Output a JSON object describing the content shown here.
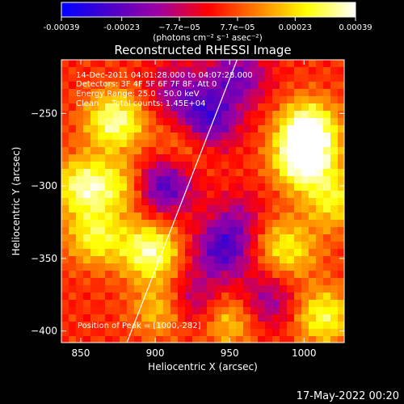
{
  "colorbar": {
    "tick_labels": [
      "-0.00039",
      "-0.00023",
      "−7.7e−05",
      "7.7e−05",
      "0.00023",
      "0.00039"
    ],
    "tick_values": [
      -0.00039,
      -0.00023,
      -7.7e-05,
      7.7e-05,
      0.00023,
      0.00039
    ],
    "range": [
      -0.00039,
      0.00039
    ],
    "unit_label": "(photons cm⁻² s⁻¹ asec⁻²)",
    "colors": [
      "#0000ff",
      "#4b00c8",
      "#a000a0",
      "#ff0000",
      "#ff8000",
      "#ffff00",
      "#ffffff"
    ]
  },
  "chart_data": {
    "type": "heatmap",
    "title": "Reconstructed RHESSI Image",
    "xlabel": "Heliocentric X (arcsec)",
    "ylabel": "Heliocentric Y (arcsec)",
    "xlim": [
      837,
      1027
    ],
    "ylim": [
      -408,
      -213
    ],
    "x_ticks": [
      850,
      900,
      950,
      1000
    ],
    "y_ticks": [
      -250,
      -300,
      -350,
      -400
    ],
    "annotations": [
      "14-Dec-2011 04:01:28.000 to 04:07:28.000",
      "Detectors: 3F 4F 5F 6F 7F 8F, Att 0",
      "Energy Range: 25.0 - 50.0 keV",
      "Clean     Total counts: 1.45E+04"
    ],
    "peak_label": "Position of Peak = [1000,-282]",
    "peak_position": [
      1000,
      -282
    ],
    "limb_line": [
      [
        881,
        -408
      ],
      [
        955,
        -213
      ]
    ],
    "hot_spots": [
      {
        "x": 1000,
        "y": -282,
        "level": 1.0
      },
      {
        "x": 1003,
        "y": -260,
        "level": 0.85
      },
      {
        "x": 873,
        "y": -255,
        "level": 0.8
      },
      {
        "x": 852,
        "y": -300,
        "level": 0.75
      },
      {
        "x": 897,
        "y": -345,
        "level": 0.8
      },
      {
        "x": 860,
        "y": -335,
        "level": 0.6
      },
      {
        "x": 905,
        "y": -385,
        "level": 0.5
      },
      {
        "x": 990,
        "y": -345,
        "level": 0.5
      },
      {
        "x": 1013,
        "y": -390,
        "level": 0.65
      },
      {
        "x": 950,
        "y": -392,
        "level": 0.5
      },
      {
        "x": 880,
        "y": -300,
        "level": 0.45
      },
      {
        "x": 920,
        "y": -270,
        "level": 0.35
      },
      {
        "x": 970,
        "y": -330,
        "level": 0.35
      },
      {
        "x": 1020,
        "y": -310,
        "level": 0.55
      }
    ],
    "cold_spots": [
      {
        "x": 905,
        "y": -300,
        "level": -0.8
      },
      {
        "x": 935,
        "y": -255,
        "level": -0.8
      },
      {
        "x": 960,
        "y": -325,
        "level": -0.55
      },
      {
        "x": 945,
        "y": -345,
        "level": -0.7
      },
      {
        "x": 925,
        "y": -380,
        "level": -0.5
      },
      {
        "x": 955,
        "y": -225,
        "level": -0.6
      },
      {
        "x": 975,
        "y": -380,
        "level": -0.5
      },
      {
        "x": 915,
        "y": -235,
        "level": -0.45
      }
    ]
  },
  "footer": {
    "timestamp": "17-May-2022 00:20"
  }
}
